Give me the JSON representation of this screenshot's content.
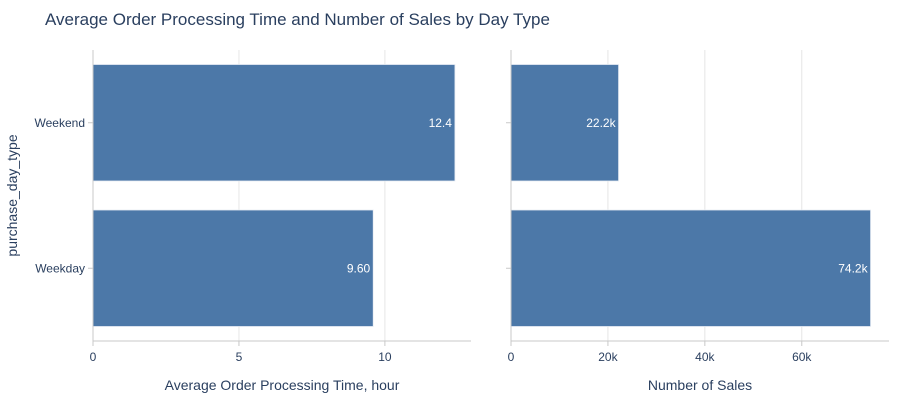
{
  "title": "Average Order Processing Time and Number of Sales by Day Type",
  "colors": {
    "bar": "#4c78a8",
    "bar_edge": "#e8edf4",
    "text": "#2a3f5f",
    "grid": "#e6e6e6",
    "axis": "#c8c8c8",
    "label_inside": "#ffffff"
  },
  "chart_data": [
    {
      "type": "bar",
      "orientation": "horizontal",
      "categories": [
        "Weekend",
        "Weekday"
      ],
      "values": [
        12.4,
        9.6
      ],
      "data_labels": [
        "12.4",
        "9.60"
      ],
      "xlabel": "Average Order Processing Time, hour",
      "ylabel": "purchase_day_type",
      "xlim": [
        0,
        12.95
      ],
      "xticks": [
        0,
        5,
        10
      ],
      "xtick_labels": [
        "0",
        "5",
        "10"
      ],
      "grid": true
    },
    {
      "type": "bar",
      "orientation": "horizontal",
      "categories": [
        "Weekend",
        "Weekday"
      ],
      "values": [
        22200,
        74200
      ],
      "data_labels": [
        "22.2k",
        "74.2k"
      ],
      "xlabel": "Number of Sales",
      "ylabel": "",
      "xlim": [
        0,
        78000
      ],
      "xticks": [
        0,
        20000,
        40000,
        60000
      ],
      "xtick_labels": [
        "0",
        "20k",
        "40k",
        "60k"
      ],
      "grid": true
    }
  ]
}
